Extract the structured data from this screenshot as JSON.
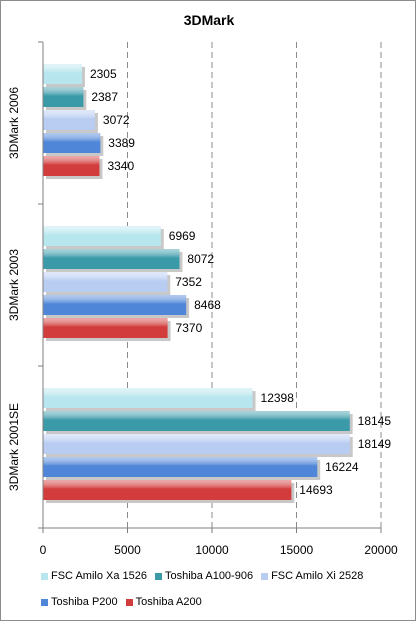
{
  "chart_data": {
    "type": "bar",
    "orientation": "horizontal",
    "title": "3DMark",
    "categories": [
      "3DMark 2006",
      "3DMark 2003",
      "3DMark 2001SE"
    ],
    "series": [
      {
        "name": "FSC Amilo Xa 1526",
        "color": "#b8e6ee",
        "values": [
          2305,
          6969,
          12398
        ]
      },
      {
        "name": "Toshiba A100-906",
        "color": "#3a9aa8",
        "values": [
          2387,
          8072,
          18145
        ]
      },
      {
        "name": "FSC Amilo Xi 2528",
        "color": "#b9cdf2",
        "values": [
          3072,
          7352,
          18149
        ]
      },
      {
        "name": "Toshiba P200",
        "color": "#4f86d8",
        "values": [
          3389,
          8468,
          16224
        ]
      },
      {
        "name": "Toshiba A200",
        "color": "#d23c3c",
        "values": [
          3340,
          7370,
          14693
        ]
      }
    ],
    "xlim": [
      0,
      20000
    ],
    "xticks": [
      0,
      5000,
      10000,
      15000,
      20000
    ],
    "grid": true,
    "legend_position": "bottom"
  }
}
